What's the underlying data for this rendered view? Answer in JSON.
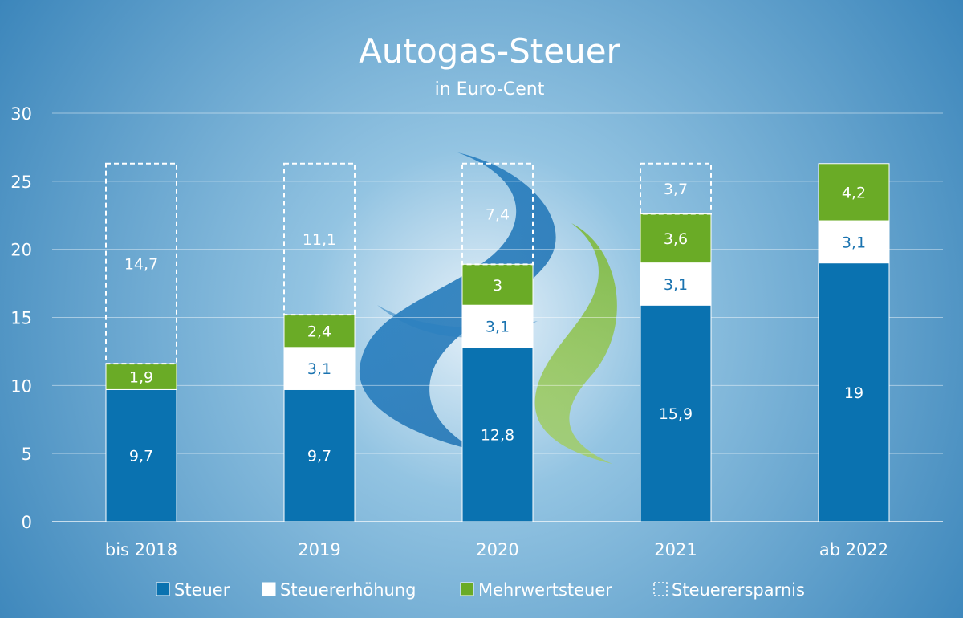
{
  "chart_data": {
    "type": "bar",
    "stacked": true,
    "title": "Autogas-Steuer",
    "subtitle": "in Euro-Cent",
    "categories": [
      "bis 2018",
      "2019",
      "2020",
      "2021",
      "ab 2022"
    ],
    "ylim": [
      0,
      30
    ],
    "yticks": [
      0,
      5,
      10,
      15,
      20,
      25,
      30
    ],
    "grid": true,
    "legend_position": "bottom",
    "series": [
      {
        "name": "Steuer",
        "values": [
          9.7,
          9.7,
          12.8,
          15.9,
          19
        ],
        "labels": [
          "9,7",
          "9,7",
          "12,8",
          "15,9",
          "19"
        ],
        "color": "#0A72B0",
        "label_color": "#FFFFFF"
      },
      {
        "name": "Steuererhöhung",
        "values": [
          0,
          3.1,
          3.1,
          3.1,
          3.1
        ],
        "labels": [
          "",
          "3,1",
          "3,1",
          "3,1",
          "3,1"
        ],
        "color": "#FFFFFF",
        "label_color": "#1A73B0"
      },
      {
        "name": "Mehrwertsteuer",
        "values": [
          1.9,
          2.4,
          3,
          3.6,
          4.2
        ],
        "labels": [
          "1,9",
          "2,4",
          "3",
          "3,6",
          "4,2"
        ],
        "color": "#6AAB26",
        "label_color": "#FFFFFF"
      },
      {
        "name": "Steuerersparnis",
        "values": [
          14.7,
          11.1,
          7.4,
          3.7,
          0
        ],
        "labels": [
          "14,7",
          "11,1",
          "7,4",
          "3,7",
          ""
        ],
        "color": "none",
        "label_color": "#FFFFFF",
        "dashed": true
      }
    ]
  }
}
